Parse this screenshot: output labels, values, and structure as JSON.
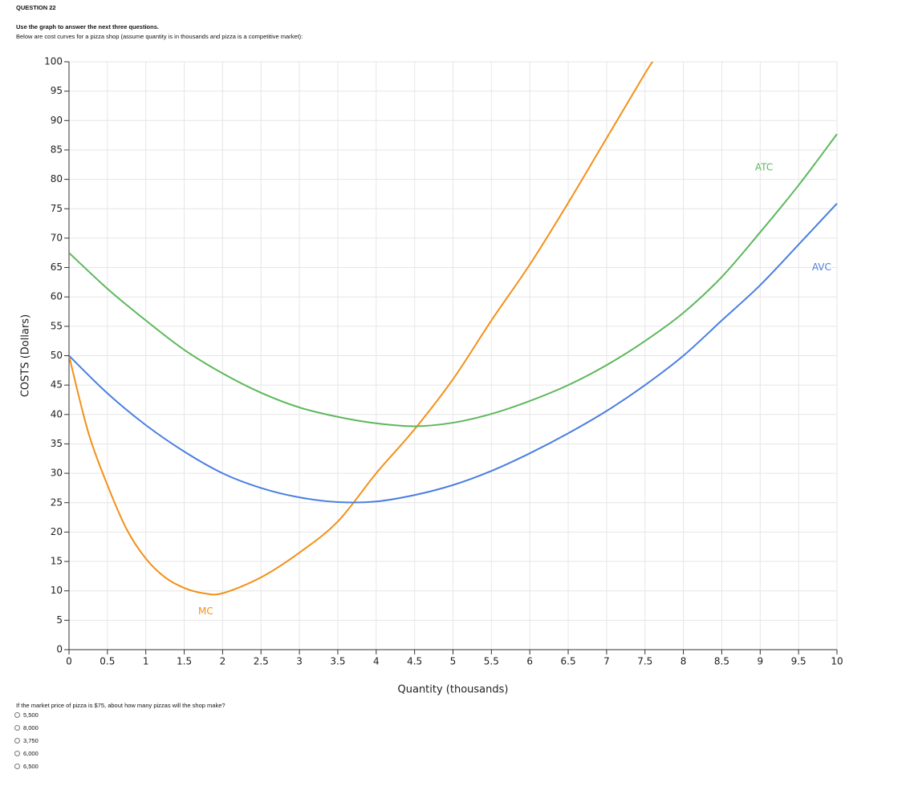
{
  "header": {
    "question": "QUESTION 22",
    "instruction": "Use the graph to answer the next three questions.",
    "description": "Below are cost curves for a pizza shop (assume quantity is in thousands and pizza is a competitive market):"
  },
  "chart_data": {
    "type": "line",
    "xlabel": "Quantity (thousands)",
    "ylabel": "COSTS (Dollars)",
    "xlim": [
      0,
      10
    ],
    "ylim": [
      0,
      100
    ],
    "xticks": [
      0,
      0.5,
      1,
      1.5,
      2,
      2.5,
      3,
      3.5,
      4,
      4.5,
      5,
      5.5,
      6,
      6.5,
      7,
      7.5,
      8,
      8.5,
      9,
      9.5,
      10
    ],
    "yticks": [
      0,
      5,
      10,
      15,
      20,
      25,
      30,
      35,
      40,
      45,
      50,
      55,
      60,
      65,
      70,
      75,
      80,
      85,
      90,
      95,
      100
    ],
    "grid": true,
    "series": [
      {
        "name": "MC",
        "color": "#f39019",
        "x": [
          0,
          0.25,
          0.5,
          0.75,
          1,
          1.25,
          1.5,
          1.75,
          2,
          2.5,
          3,
          3.5,
          4,
          4.5,
          5,
          5.5,
          6,
          6.5,
          7,
          7.5,
          7.6
        ],
        "values": [
          50,
          37,
          28,
          20.5,
          15.5,
          12.3,
          10.5,
          9.6,
          9.6,
          12.3,
          16.5,
          21.8,
          30,
          37.5,
          46,
          56,
          65.5,
          76,
          87,
          98,
          100
        ]
      },
      {
        "name": "ATC",
        "color": "#5cb85c",
        "x": [
          0,
          0.5,
          1,
          1.5,
          2,
          2.5,
          3,
          3.5,
          4,
          4.5,
          5,
          5.5,
          6,
          6.5,
          7,
          7.5,
          8,
          8.5,
          9,
          9.5,
          10
        ],
        "values": [
          67.5,
          61.4,
          56,
          51,
          47,
          43.7,
          41.2,
          39.6,
          38.5,
          38,
          38.6,
          40.1,
          42.3,
          45,
          48.4,
          52.5,
          57.3,
          63.4,
          71,
          79,
          87.7
        ]
      },
      {
        "name": "AVC",
        "color": "#4a7fe0",
        "x": [
          0,
          0.5,
          1,
          1.5,
          2,
          2.5,
          3,
          3.5,
          4,
          4.5,
          5,
          5.5,
          6,
          6.5,
          7,
          7.5,
          8,
          8.5,
          9,
          9.5,
          10
        ],
        "values": [
          50,
          43.6,
          38.2,
          33.7,
          30,
          27.5,
          25.9,
          25.1,
          25.2,
          26.3,
          28,
          30.4,
          33.4,
          36.8,
          40.6,
          45,
          50,
          56,
          62,
          68.9,
          75.9
        ]
      }
    ],
    "annotations": [
      {
        "text": "MC",
        "x": 1.78,
        "y": 6.5,
        "series": 0
      },
      {
        "text": "ATC",
        "x": 9.05,
        "y": 82,
        "series": 1
      },
      {
        "text": "AVC",
        "x": 9.8,
        "y": 65,
        "series": 2
      }
    ]
  },
  "question": {
    "prompt": "If the market price of pizza is $75, about how many pizzas will the shop make?",
    "options": [
      "5,500",
      "8,000",
      "3,750",
      "6,000",
      "6,500"
    ]
  }
}
